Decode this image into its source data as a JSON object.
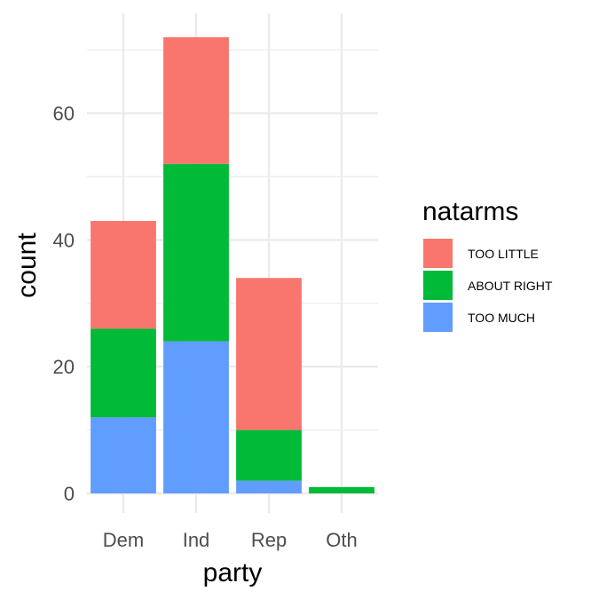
{
  "chart_data": {
    "type": "bar",
    "stacked": true,
    "title": "",
    "xlabel": "party",
    "ylabel": "count",
    "categories": [
      "Dem",
      "Ind",
      "Rep",
      "Oth"
    ],
    "ylim": [
      0,
      72
    ],
    "yticks": [
      0,
      20,
      40,
      60
    ],
    "grid": true,
    "legend": {
      "title": "natarms",
      "placement": "right"
    },
    "series": [
      {
        "name": "TOO MUCH",
        "color": "#619CFF",
        "values": [
          12,
          24,
          2,
          0
        ]
      },
      {
        "name": "ABOUT RIGHT",
        "color": "#00BA38",
        "values": [
          14,
          28,
          8,
          1
        ]
      },
      {
        "name": "TOO LITTLE",
        "color": "#F8766D",
        "values": [
          17,
          20,
          24,
          0
        ]
      }
    ],
    "legend_order": [
      "TOO LITTLE",
      "ABOUT RIGHT",
      "TOO MUCH"
    ]
  }
}
